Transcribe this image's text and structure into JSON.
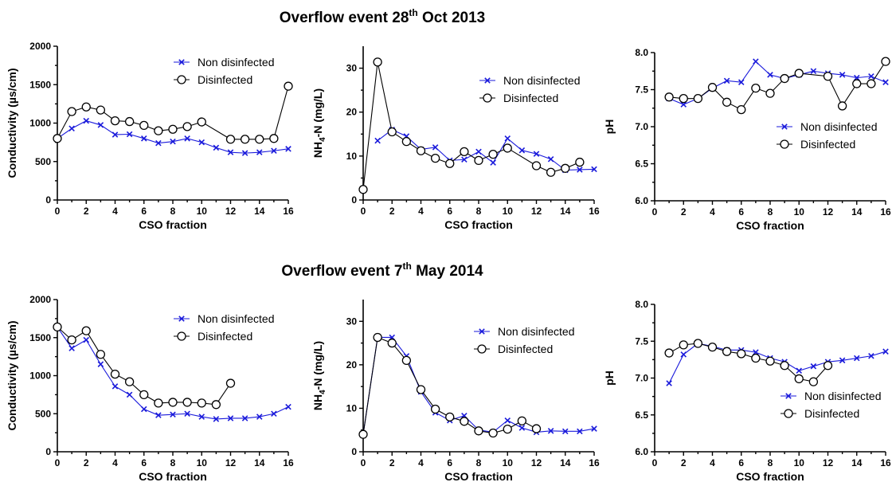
{
  "titles": {
    "top": {
      "prefix": "Overflow event 28",
      "sup": "th",
      "suffix": " Oct 2013"
    },
    "bottom": {
      "prefix": "Overflow event 7",
      "sup": "th",
      "suffix": " May 2014"
    }
  },
  "colors": {
    "non_disinfected": "#1a1adb",
    "disinfected": "#000000"
  },
  "chart_data": [
    {
      "type": "line",
      "event": "top",
      "xlabel": "CSO fraction",
      "ylabel": "Conductivity (µs/cm)",
      "xlim": [
        0,
        16
      ],
      "ylim": [
        0,
        2000
      ],
      "xticks": [
        "0",
        "2",
        "4",
        "6",
        "8",
        "10",
        "12",
        "14",
        "16"
      ],
      "yticks": [
        "0",
        "500",
        "1000",
        "1500",
        "2000"
      ],
      "legend": "top-right",
      "series": [
        {
          "name": "Non disinfected",
          "marker": "x",
          "x": [
            0,
            1,
            2,
            3,
            4,
            5,
            6,
            7,
            8,
            9,
            10,
            11,
            12,
            13,
            14,
            15,
            16
          ],
          "y": [
            800,
            930,
            1030,
            975,
            850,
            855,
            800,
            740,
            760,
            800,
            750,
            680,
            620,
            610,
            620,
            640,
            665
          ]
        },
        {
          "name": "Disinfected",
          "marker": "o",
          "x": [
            0,
            1,
            2,
            3,
            4,
            5,
            6,
            7,
            8,
            9,
            10,
            12,
            13,
            14,
            15,
            16
          ],
          "y": [
            800,
            1150,
            1210,
            1170,
            1030,
            1020,
            970,
            900,
            920,
            955,
            1015,
            790,
            790,
            790,
            800,
            1480
          ]
        }
      ]
    },
    {
      "type": "line",
      "event": "top",
      "xlabel": "CSO fraction",
      "ylabel": {
        "pre": "NH",
        "sub": "4",
        "post": "-N (mg/L)"
      },
      "xlim": [
        0,
        16
      ],
      "ylim": [
        0,
        35
      ],
      "xticks": [
        "0",
        "2",
        "4",
        "6",
        "8",
        "10",
        "12",
        "14",
        "16"
      ],
      "yticks": [
        "0",
        "10",
        "20",
        "30"
      ],
      "legend": "top-right",
      "series": [
        {
          "name": "Non disinfected",
          "marker": "x",
          "x": [
            1,
            2,
            3,
            4,
            5,
            6,
            7,
            8,
            9,
            10,
            11,
            12,
            13,
            14,
            15,
            16
          ],
          "y": [
            13.5,
            16.0,
            14.5,
            11.5,
            12.0,
            9.0,
            9.2,
            11.0,
            8.5,
            14.0,
            11.3,
            10.5,
            9.3,
            6.8,
            6.9,
            7.0
          ]
        },
        {
          "name": "Disinfected",
          "marker": "o",
          "x": [
            0,
            1,
            2,
            3,
            4,
            5,
            6,
            7,
            8,
            9,
            10,
            12,
            13,
            14,
            15
          ],
          "y": [
            2.4,
            31.4,
            15.5,
            13.3,
            11.2,
            9.5,
            8.3,
            11.0,
            9.0,
            10.4,
            11.8,
            7.8,
            6.3,
            7.2,
            8.6
          ]
        }
      ]
    },
    {
      "type": "line",
      "event": "top",
      "xlabel": "CSO fraction",
      "ylabel": "pH",
      "xlim": [
        0,
        16
      ],
      "ylim": [
        6.0,
        8.0
      ],
      "xticks": [
        "0",
        "2",
        "4",
        "6",
        "8",
        "10",
        "12",
        "14",
        "16"
      ],
      "yticks": [
        "6.0",
        "6.5",
        "7.0",
        "7.5",
        "8.0"
      ],
      "legend": "right",
      "series": [
        {
          "name": "Non disinfected",
          "marker": "x",
          "x": [
            1,
            2,
            3,
            4,
            5,
            6,
            7,
            8,
            9,
            10,
            11,
            12,
            13,
            14,
            15,
            16
          ],
          "y": [
            7.38,
            7.3,
            7.38,
            7.52,
            7.62,
            7.6,
            7.88,
            7.7,
            7.65,
            7.7,
            7.75,
            7.72,
            7.7,
            7.66,
            7.68,
            7.6
          ]
        },
        {
          "name": "Disinfected",
          "marker": "o",
          "x": [
            1,
            2,
            3,
            4,
            5,
            6,
            7,
            8,
            9,
            10,
            12,
            13,
            14,
            15,
            16
          ],
          "y": [
            7.4,
            7.38,
            7.38,
            7.53,
            7.33,
            7.23,
            7.52,
            7.45,
            7.65,
            7.72,
            7.68,
            7.28,
            7.58,
            7.58,
            7.88
          ]
        }
      ]
    },
    {
      "type": "line",
      "event": "bottom",
      "xlabel": "CSO fraction",
      "ylabel": "Conductivity (µs/cm)",
      "xlim": [
        0,
        16
      ],
      "ylim": [
        0,
        2000
      ],
      "xticks": [
        "0",
        "2",
        "4",
        "6",
        "8",
        "10",
        "12",
        "14",
        "16"
      ],
      "yticks": [
        "0",
        "500",
        "1000",
        "1500",
        "2000"
      ],
      "legend": "top-right",
      "series": [
        {
          "name": "Non disinfected",
          "marker": "x",
          "x": [
            0,
            1,
            2,
            3,
            4,
            5,
            6,
            7,
            8,
            9,
            10,
            11,
            12,
            13,
            14,
            15,
            16
          ],
          "y": [
            1640,
            1360,
            1470,
            1150,
            860,
            750,
            560,
            480,
            490,
            500,
            460,
            430,
            440,
            440,
            460,
            500,
            590
          ]
        },
        {
          "name": "Disinfected",
          "marker": "o",
          "x": [
            0,
            1,
            2,
            3,
            4,
            5,
            6,
            7,
            8,
            9,
            10,
            11,
            12
          ],
          "y": [
            1640,
            1470,
            1590,
            1280,
            1020,
            920,
            750,
            640,
            650,
            650,
            640,
            620,
            900
          ]
        }
      ]
    },
    {
      "type": "line",
      "event": "bottom",
      "xlabel": "CSO fraction",
      "ylabel": {
        "pre": "NH",
        "sub": "4",
        "post": "-N (mg/L)"
      },
      "xlim": [
        0,
        16
      ],
      "ylim": [
        0,
        35
      ],
      "xticks": [
        "0",
        "2",
        "4",
        "6",
        "8",
        "10",
        "12",
        "14",
        "16"
      ],
      "yticks": [
        "0",
        "10",
        "20",
        "30"
      ],
      "legend": "right",
      "series": [
        {
          "name": "Non disinfected",
          "marker": "x",
          "x": [
            0,
            1,
            2,
            3,
            4,
            5,
            6,
            7,
            8,
            9,
            10,
            11,
            12,
            13,
            14,
            15,
            16
          ],
          "y": [
            4.0,
            26.3,
            26.3,
            22.0,
            13.8,
            9.0,
            7.2,
            8.3,
            5.0,
            4.5,
            7.2,
            5.5,
            4.5,
            4.8,
            4.7,
            4.7,
            5.3
          ]
        },
        {
          "name": "Disinfected",
          "marker": "o",
          "x": [
            0,
            1,
            2,
            3,
            4,
            5,
            6,
            7,
            8,
            9,
            10,
            11,
            12
          ],
          "y": [
            4.0,
            26.3,
            25.0,
            21.0,
            14.3,
            9.8,
            8.0,
            7.0,
            4.8,
            4.3,
            5.2,
            7.1,
            5.3
          ]
        }
      ]
    },
    {
      "type": "line",
      "event": "bottom",
      "xlabel": "CSO fraction",
      "ylabel": "pH",
      "xlim": [
        0,
        16
      ],
      "ylim": [
        6.0,
        8.0
      ],
      "xticks": [
        "0",
        "2",
        "4",
        "6",
        "8",
        "10",
        "12",
        "14",
        "16"
      ],
      "yticks": [
        "6.0",
        "6.5",
        "7.0",
        "7.5",
        "8.0"
      ],
      "legend": "bottom-right",
      "series": [
        {
          "name": "Non disinfected",
          "marker": "x",
          "x": [
            1,
            2,
            3,
            4,
            5,
            6,
            7,
            8,
            9,
            10,
            11,
            12,
            13,
            14,
            15,
            16
          ],
          "y": [
            6.93,
            7.32,
            7.47,
            7.43,
            7.38,
            7.38,
            7.35,
            7.27,
            7.22,
            7.1,
            7.16,
            7.22,
            7.24,
            7.27,
            7.3,
            7.36
          ]
        },
        {
          "name": "Disinfected",
          "marker": "o",
          "x": [
            1,
            2,
            3,
            4,
            5,
            6,
            7,
            8,
            9,
            10,
            11,
            12
          ],
          "y": [
            7.34,
            7.45,
            7.47,
            7.42,
            7.36,
            7.33,
            7.27,
            7.23,
            7.17,
            6.99,
            6.95,
            7.17
          ]
        }
      ]
    }
  ]
}
